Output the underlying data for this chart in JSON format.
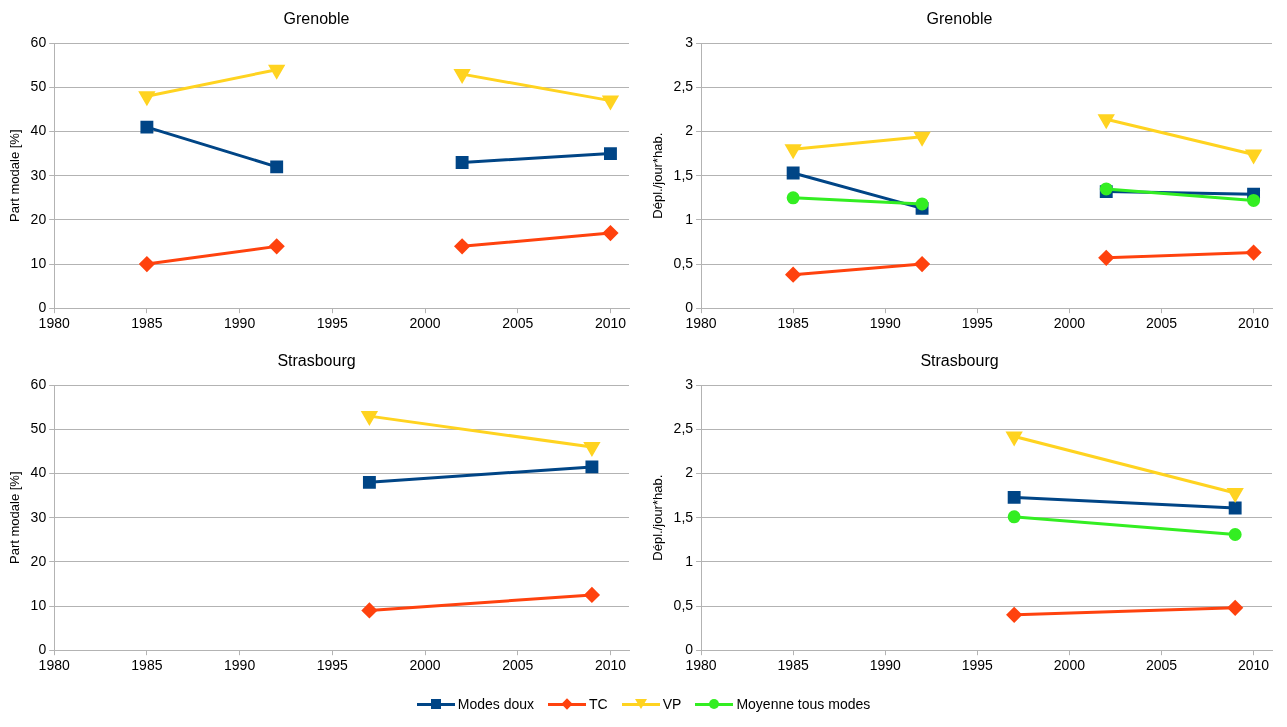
{
  "chart_data": [
    {
      "type": "line",
      "title": "Grenoble",
      "ylabel": "Part modale [%]",
      "x": [
        1985,
        1992,
        1997,
        2002,
        2010
      ],
      "xlim": [
        1980,
        2011
      ],
      "xticks": [
        1980,
        1985,
        1990,
        1995,
        2000,
        2005,
        2010
      ],
      "ylim": [
        0,
        60
      ],
      "yticks": [
        0,
        10,
        20,
        30,
        40,
        50,
        60
      ],
      "grid": "y",
      "legend": false,
      "series": [
        {
          "color": "#004586",
          "marker": "square",
          "values": [
            41,
            32,
            null,
            33,
            35
          ]
        },
        {
          "color": "#ff420e",
          "marker": "diamond",
          "values": [
            10,
            14,
            null,
            14,
            17
          ]
        },
        {
          "color": "#ffd320",
          "marker": "triangle",
          "values": [
            48,
            54,
            null,
            53,
            47
          ]
        }
      ]
    },
    {
      "type": "line",
      "title": "Grenoble",
      "ylabel": "Dépl./jour*hab.",
      "x": [
        1985,
        1992,
        1997,
        2002,
        2010
      ],
      "xlim": [
        1980,
        2011
      ],
      "xticks": [
        1980,
        1985,
        1990,
        1995,
        2000,
        2005,
        2010
      ],
      "ylim": [
        0,
        3
      ],
      "yticks": [
        0,
        {
          "value": 0.5,
          "label": "0,5"
        },
        1,
        {
          "value": 1.5,
          "label": "1,5"
        },
        2,
        {
          "value": 2.5,
          "label": "2,5"
        },
        3
      ],
      "grid": "y",
      "legend": false,
      "series": [
        {
          "color": "#004586",
          "marker": "square",
          "values": [
            1.53,
            1.13,
            null,
            1.32,
            1.29
          ]
        },
        {
          "color": "#ff420e",
          "marker": "diamond",
          "values": [
            0.38,
            0.5,
            null,
            0.57,
            0.63
          ]
        },
        {
          "color": "#ffd320",
          "marker": "triangle",
          "values": [
            1.8,
            1.94,
            null,
            2.14,
            1.74
          ]
        },
        {
          "color": "#33ee22",
          "marker": "circle",
          "values": [
            1.25,
            1.18,
            null,
            1.35,
            1.22
          ]
        }
      ]
    },
    {
      "type": "line",
      "title": "Strasbourg",
      "ylabel": "Part modale [%]",
      "x": [
        1997,
        2009
      ],
      "xlim": [
        1980,
        2011
      ],
      "xticks": [
        1980,
        1985,
        1990,
        1995,
        2000,
        2005,
        2010
      ],
      "ylim": [
        0,
        60
      ],
      "yticks": [
        0,
        10,
        20,
        30,
        40,
        50,
        60
      ],
      "grid": "y",
      "legend": false,
      "series": [
        {
          "color": "#004586",
          "marker": "square",
          "values": [
            38,
            41.5
          ]
        },
        {
          "color": "#ff420e",
          "marker": "diamond",
          "values": [
            9,
            12.5
          ]
        },
        {
          "color": "#ffd320",
          "marker": "triangle",
          "values": [
            53,
            46
          ]
        }
      ]
    },
    {
      "type": "line",
      "title": "Strasbourg",
      "ylabel": "Dépl./jour*hab.",
      "x": [
        1997,
        2009
      ],
      "xlim": [
        1980,
        2011
      ],
      "xticks": [
        1980,
        1985,
        1990,
        1995,
        2000,
        2005,
        2010
      ],
      "ylim": [
        0,
        3
      ],
      "yticks": [
        0,
        {
          "value": 0.5,
          "label": "0,5"
        },
        1,
        {
          "value": 1.5,
          "label": "1,5"
        },
        2,
        {
          "value": 2.5,
          "label": "2,5"
        },
        3
      ],
      "grid": "y",
      "legend": "bottom",
      "series": [
        {
          "name": "Modes doux",
          "color": "#004586",
          "marker": "square",
          "values": [
            1.73,
            1.61
          ]
        },
        {
          "name": "TC",
          "color": "#ff420e",
          "marker": "diamond",
          "values": [
            0.4,
            0.48
          ]
        },
        {
          "name": "VP",
          "color": "#ffd320",
          "marker": "triangle",
          "values": [
            2.42,
            1.78
          ]
        },
        {
          "name": "Moyenne tous modes",
          "color": "#33ee22",
          "marker": "circle",
          "values": [
            1.51,
            1.31
          ]
        }
      ]
    }
  ]
}
